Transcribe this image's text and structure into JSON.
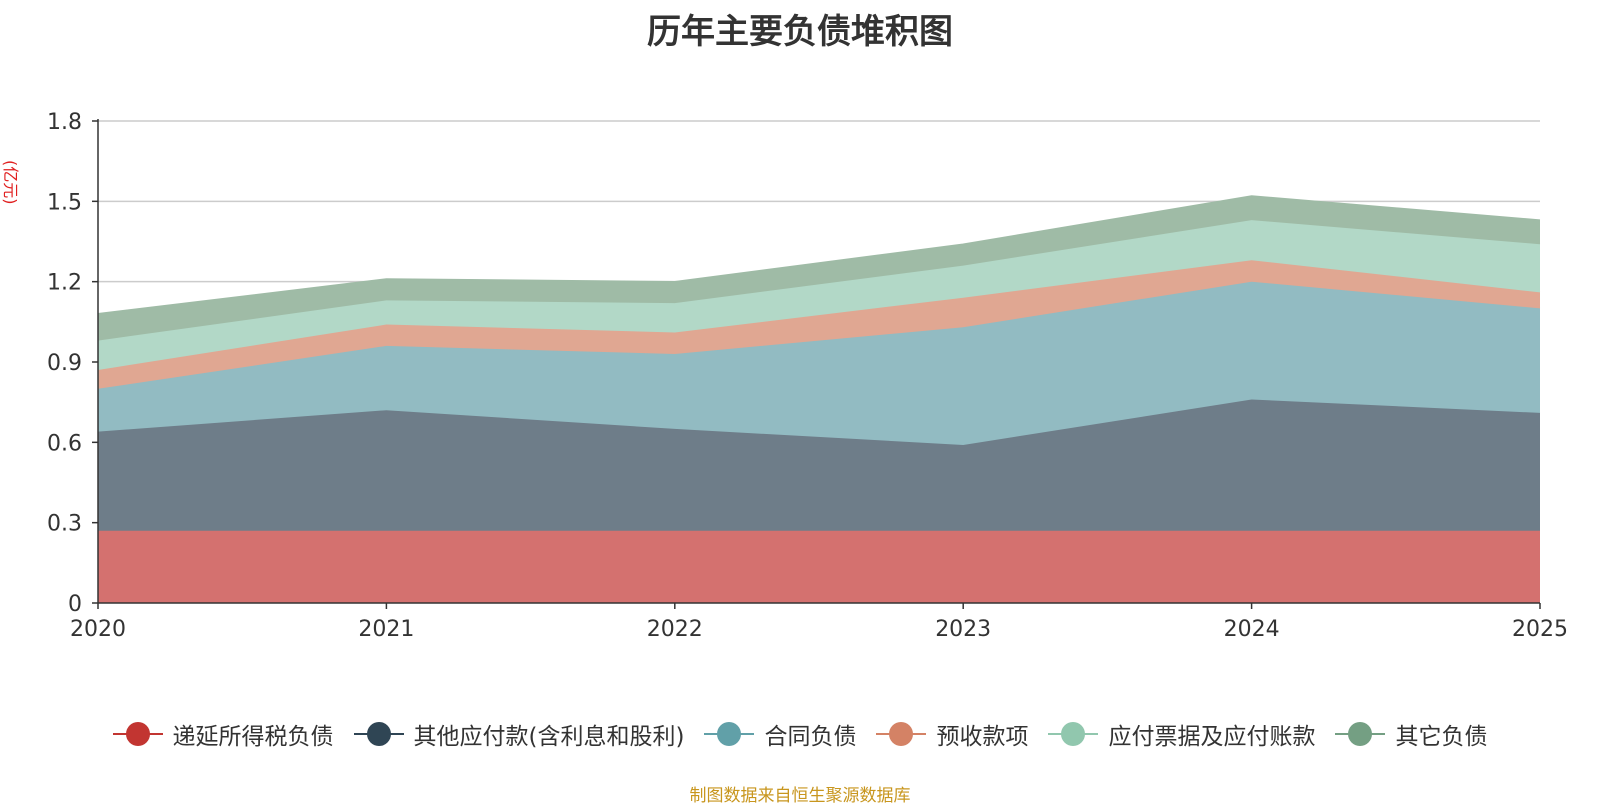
{
  "chart_data": {
    "type": "area",
    "stacked": true,
    "title": "历年主要负债堆积图",
    "unit": "(亿元)",
    "x": [
      "2020",
      "2021",
      "2022",
      "2023",
      "2024",
      "2025"
    ],
    "ylim": [
      0,
      1.8
    ],
    "yticks": [
      "0",
      "0.3",
      "0.6",
      "0.9",
      "1.2",
      "1.5",
      "1.8"
    ],
    "grid": true,
    "legend_position": "bottom",
    "series": [
      {
        "name": "递延所得税负债",
        "color": "#c23531",
        "fill": "#d4716f",
        "values": [
          0.27,
          0.27,
          0.27,
          0.27,
          0.27,
          0.27
        ]
      },
      {
        "name": "其他应付款(含利息和股利)",
        "color": "#2f4554",
        "fill": "#6e7d89",
        "values": [
          0.37,
          0.45,
          0.38,
          0.32,
          0.49,
          0.44
        ]
      },
      {
        "name": "合同负债",
        "color": "#61a0a8",
        "fill": "#92bbc2",
        "values": [
          0.16,
          0.24,
          0.28,
          0.44,
          0.44,
          0.39
        ]
      },
      {
        "name": "预收款项",
        "color": "#d48265",
        "fill": "#e0a792",
        "values": [
          0.07,
          0.08,
          0.08,
          0.11,
          0.08,
          0.06
        ]
      },
      {
        "name": "应付票据及应付账款",
        "color": "#91c7ae",
        "fill": "#b2d8c7",
        "values": [
          0.11,
          0.09,
          0.11,
          0.12,
          0.15,
          0.18
        ]
      },
      {
        "name": "其它负债",
        "color": "#749f83",
        "fill": "#9fbba6",
        "values": [
          0.1,
          0.08,
          0.08,
          0.08,
          0.09,
          0.09
        ]
      }
    ]
  },
  "source_note": "制图数据来自恒生聚源数据库"
}
